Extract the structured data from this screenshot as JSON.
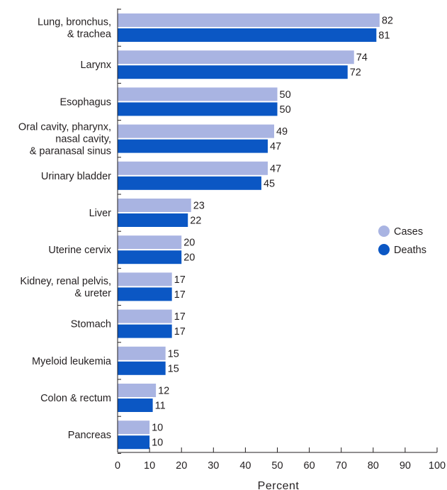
{
  "chart_data": {
    "type": "bar",
    "orientation": "horizontal",
    "categories": [
      [
        "Lung, bronchus,",
        "& trachea"
      ],
      [
        "Larynx"
      ],
      [
        "Esophagus"
      ],
      [
        "Oral cavity, pharynx,",
        "nasal cavity,",
        "& paranasal sinus"
      ],
      [
        "Urinary bladder"
      ],
      [
        "Liver"
      ],
      [
        "Uterine cervix"
      ],
      [
        "Kidney, renal pelvis,",
        "& ureter"
      ],
      [
        "Stomach"
      ],
      [
        "Myeloid leukemia"
      ],
      [
        "Colon & rectum"
      ],
      [
        "Pancreas"
      ]
    ],
    "series": [
      {
        "name": "Cases",
        "color": "#a9b4e2",
        "values": [
          82,
          74,
          50,
          49,
          47,
          23,
          20,
          17,
          17,
          15,
          12,
          10
        ]
      },
      {
        "name": "Deaths",
        "color": "#0b57c4",
        "values": [
          81,
          72,
          50,
          47,
          45,
          22,
          20,
          17,
          17,
          15,
          11,
          10
        ]
      }
    ],
    "xlabel": "Percent",
    "xlim": [
      0,
      100
    ],
    "xticks": [
      "0",
      "10",
      "20",
      "30",
      "40",
      "50",
      "60",
      "70",
      "80",
      "90",
      "100"
    ],
    "legend_position": "right",
    "grid": false
  }
}
